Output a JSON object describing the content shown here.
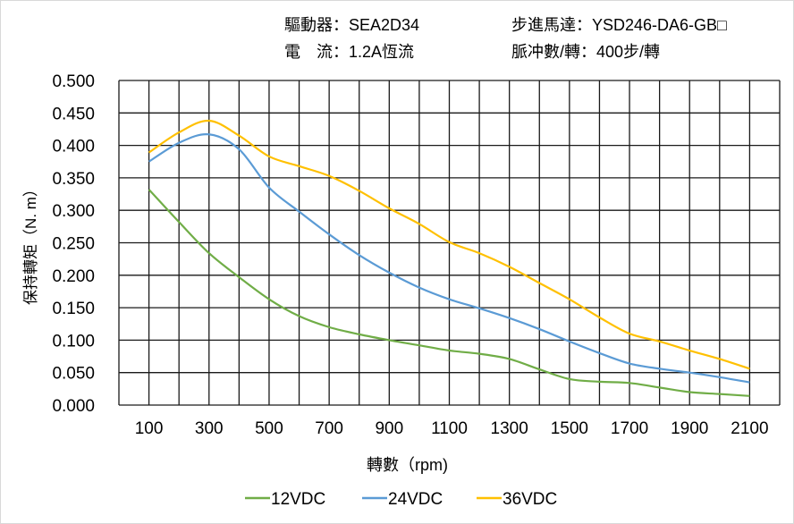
{
  "header": {
    "driver": "驅動器：SEA2D34",
    "motor": "步進馬達：YSD246-DA6-GB□",
    "current": "電　流：1.2A恆流",
    "pulses": "脈冲數/轉：400步/轉"
  },
  "chart_data": {
    "type": "line",
    "title": "",
    "xlabel": "轉數（rpm)",
    "ylabel": "保持轉矩（N. m）",
    "xlim": [
      0,
      2200
    ],
    "ylim": [
      0,
      0.5
    ],
    "grid": true,
    "legend_position": "bottom",
    "x_ticks": [
      "100",
      "300",
      "500",
      "700",
      "900",
      "1100",
      "1300",
      "1500",
      "1700",
      "1900",
      "2100"
    ],
    "y_ticks": [
      "0.000",
      "0.050",
      "0.100",
      "0.150",
      "0.200",
      "0.250",
      "0.300",
      "0.350",
      "0.400",
      "0.450",
      "0.500"
    ],
    "x": [
      100,
      200,
      300,
      400,
      500,
      600,
      700,
      800,
      900,
      1000,
      1100,
      1200,
      1300,
      1400,
      1500,
      1600,
      1700,
      1800,
      1900,
      2000,
      2100
    ],
    "series": [
      {
        "name": "12VDC",
        "color": "#70AD47",
        "values": [
          0.332,
          0.282,
          0.234,
          0.197,
          0.163,
          0.137,
          0.12,
          0.109,
          0.1,
          0.092,
          0.084,
          0.079,
          0.071,
          0.055,
          0.04,
          0.036,
          0.034,
          0.027,
          0.02,
          0.017,
          0.014
        ]
      },
      {
        "name": "24VDC",
        "color": "#5B9BD5",
        "values": [
          0.375,
          0.404,
          0.417,
          0.394,
          0.335,
          0.298,
          0.263,
          0.231,
          0.204,
          0.181,
          0.163,
          0.149,
          0.134,
          0.117,
          0.098,
          0.08,
          0.064,
          0.056,
          0.05,
          0.043,
          0.035
        ]
      },
      {
        "name": "36VDC",
        "color": "#FFC000",
        "values": [
          0.389,
          0.42,
          0.438,
          0.415,
          0.383,
          0.368,
          0.353,
          0.33,
          0.303,
          0.279,
          0.251,
          0.234,
          0.213,
          0.188,
          0.163,
          0.135,
          0.11,
          0.098,
          0.084,
          0.071,
          0.056
        ]
      }
    ]
  }
}
